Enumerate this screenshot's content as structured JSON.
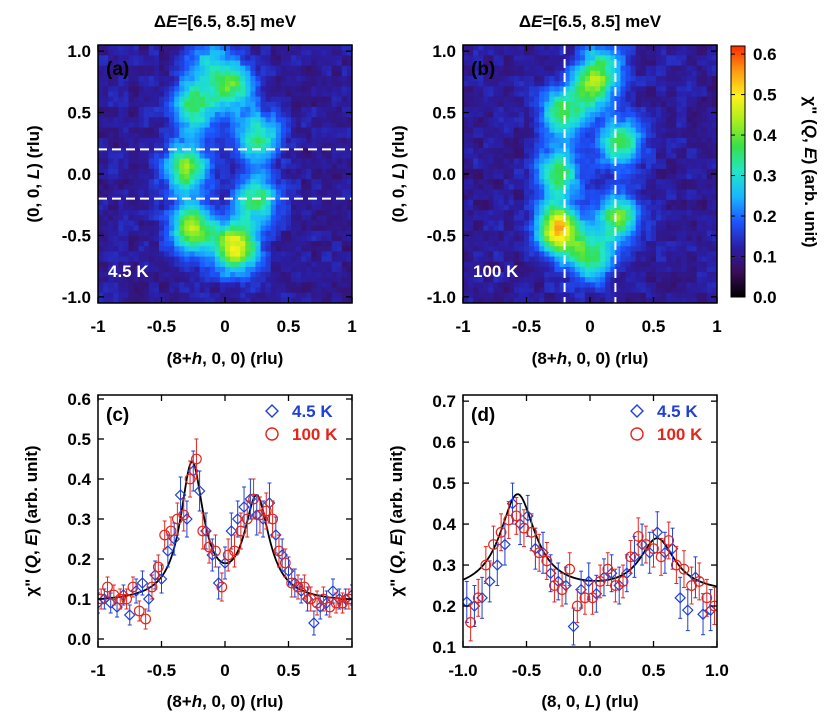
{
  "colors": {
    "blue": "#1f3fd6",
    "red": "#e3261c",
    "fit": "#000000",
    "colormap": [
      "#000000",
      "#3a0d5a",
      "#2a1fa8",
      "#1c55ff",
      "#19b6ff",
      "#20e6c8",
      "#38e04a",
      "#a6ee1e",
      "#fff21a",
      "#ff9a12",
      "#ff2a00"
    ]
  },
  "chart_data": [
    {
      "panel": "(a)",
      "type": "heatmap",
      "title": "ΔE=[6.5, 8.5] meV",
      "title_parts": {
        "delta": "Δ",
        "E": "E",
        "rest": "=[6.5, 8.5] meV"
      },
      "xlabel": "(8+h, 0, 0) (rlu)",
      "xlabel_parts": {
        "pre": "(8+",
        "var": "h",
        "post": ", 0, 0) (rlu)"
      },
      "ylabel": "(0, 0, L) (rlu)",
      "ylabel_parts": {
        "pre": "(0, 0, ",
        "var": "L",
        "post": ") (rlu)"
      },
      "xlim": [
        -1,
        1
      ],
      "ylim": [
        -1.05,
        1.05
      ],
      "xticks": [
        "-1",
        "-0.5",
        "0",
        "0.5",
        "1"
      ],
      "yticks": [
        "-1.0",
        "-0.5",
        "0.0",
        "0.5",
        "1.0"
      ],
      "temperature_label": "4.5 K",
      "cut_lines": {
        "orientation": "horizontal",
        "at": [
          -0.2,
          0.2
        ]
      },
      "intensity_model": {
        "background": 0.11,
        "ring": [
          {
            "h": -0.26,
            "L": -0.45,
            "amp": 0.34
          },
          {
            "h": 0.08,
            "L": -0.6,
            "amp": 0.39
          },
          {
            "h": 0.25,
            "L": -0.2,
            "amp": 0.25
          },
          {
            "h": 0.26,
            "L": 0.3,
            "amp": 0.24
          },
          {
            "h": 0.05,
            "L": 0.72,
            "amp": 0.26
          },
          {
            "h": -0.25,
            "L": 0.55,
            "amp": 0.26
          },
          {
            "h": -0.3,
            "L": 0.05,
            "amp": 0.3
          },
          {
            "h": -0.15,
            "L": 0.9,
            "amp": 0.14
          }
        ]
      }
    },
    {
      "panel": "(b)",
      "type": "heatmap",
      "title": "ΔE=[6.5, 8.5] meV",
      "title_parts": {
        "delta": "Δ",
        "E": "E",
        "rest": "=[6.5, 8.5] meV"
      },
      "xlabel": "(8+h, 0, 0) (rlu)",
      "xlabel_parts": {
        "pre": "(8+",
        "var": "h",
        "post": ", 0, 0) (rlu)"
      },
      "ylabel": "(0, 0, L) (rlu)",
      "ylabel_parts": {
        "pre": "(0, 0, ",
        "var": "L",
        "post": ") (rlu)"
      },
      "xlim": [
        -1,
        1
      ],
      "ylim": [
        -1.05,
        1.05
      ],
      "xticks": [
        "-1",
        "-0.5",
        "0",
        "0.5",
        "1"
      ],
      "yticks": [
        "-1.0",
        "-0.5",
        "0.0",
        "0.5",
        "1.0"
      ],
      "temperature_label": "100 K",
      "cut_lines": {
        "orientation": "vertical",
        "at": [
          -0.2,
          0.2
        ]
      },
      "intensity_model": {
        "background": 0.11,
        "ring": [
          {
            "h": -0.25,
            "L": -0.45,
            "amp": 0.42
          },
          {
            "h": 0.0,
            "L": -0.68,
            "amp": 0.26
          },
          {
            "h": 0.22,
            "L": -0.35,
            "amp": 0.28
          },
          {
            "h": 0.24,
            "L": 0.25,
            "amp": 0.26
          },
          {
            "h": 0.02,
            "L": 0.72,
            "amp": 0.26
          },
          {
            "h": -0.22,
            "L": 0.5,
            "amp": 0.26
          },
          {
            "h": -0.25,
            "L": 0.0,
            "amp": 0.26
          },
          {
            "h": 0.1,
            "L": 0.9,
            "amp": 0.14
          }
        ]
      },
      "colorbar": {
        "label": "χ\" (Q, E) (arb. unit)",
        "label_parts": {
          "chi": "χ\" (",
          "Q": "Q",
          "comma": ", ",
          "E": "E",
          "post": ") (arb. unit)"
        },
        "range": [
          0.0,
          0.62
        ],
        "ticks": [
          "0.0",
          "0.1",
          "0.2",
          "0.3",
          "0.4",
          "0.5",
          "0.6"
        ]
      }
    },
    {
      "panel": "(c)",
      "type": "scatter",
      "xlabel": "(8+h, 0, 0) (rlu)",
      "xlabel_parts": {
        "pre": "(8+",
        "var": "h",
        "post": ", 0, 0) (rlu)"
      },
      "ylabel": "χ\" (Q, E) (arb. unit)",
      "ylabel_parts": {
        "chi": "χ\" (",
        "Q": "Q",
        "comma": ", ",
        "E": "E",
        "post": ") (arb. unit)"
      },
      "xlim": [
        -1,
        1
      ],
      "ylim": [
        -0.02,
        0.61
      ],
      "xticks": [
        "-1",
        "-0.5",
        "0",
        "0.5",
        "1"
      ],
      "yticks": [
        "0.0",
        "0.1",
        "0.2",
        "0.3",
        "0.4",
        "0.5",
        "0.6"
      ],
      "legend": [
        "4.5 K",
        "100 K"
      ],
      "series": [
        {
          "name": "4.5 K",
          "marker": "diamond",
          "color": "blue",
          "x": [
            -1.0,
            -0.95,
            -0.9,
            -0.85,
            -0.8,
            -0.75,
            -0.7,
            -0.65,
            -0.6,
            -0.55,
            -0.5,
            -0.45,
            -0.4,
            -0.35,
            -0.3,
            -0.25,
            -0.2,
            -0.15,
            -0.1,
            -0.05,
            0.0,
            0.05,
            0.1,
            0.15,
            0.2,
            0.25,
            0.3,
            0.35,
            0.4,
            0.45,
            0.5,
            0.55,
            0.6,
            0.65,
            0.7,
            0.75,
            0.8,
            0.85,
            0.9,
            0.95,
            1.0
          ],
          "y": [
            0.09,
            0.1,
            0.09,
            0.08,
            0.11,
            0.06,
            0.12,
            0.14,
            0.1,
            0.16,
            0.15,
            0.22,
            0.25,
            0.36,
            0.3,
            0.42,
            0.37,
            0.27,
            0.21,
            0.14,
            0.19,
            0.27,
            0.3,
            0.33,
            0.35,
            0.31,
            0.3,
            0.34,
            0.26,
            0.21,
            0.17,
            0.14,
            0.12,
            0.1,
            0.04,
            0.08,
            0.09,
            0.12,
            0.1,
            0.1,
            0.11
          ],
          "err": [
            0.025,
            0.025,
            0.025,
            0.025,
            0.025,
            0.025,
            0.03,
            0.03,
            0.03,
            0.035,
            0.035,
            0.04,
            0.04,
            0.045,
            0.045,
            0.05,
            0.05,
            0.045,
            0.04,
            0.04,
            0.04,
            0.045,
            0.045,
            0.05,
            0.05,
            0.05,
            0.045,
            0.05,
            0.045,
            0.04,
            0.035,
            0.035,
            0.03,
            0.03,
            0.03,
            0.03,
            0.03,
            0.03,
            0.025,
            0.025,
            0.025
          ]
        },
        {
          "name": "100 K",
          "marker": "circle",
          "color": "red",
          "x": [
            -0.975,
            -0.925,
            -0.875,
            -0.825,
            -0.775,
            -0.725,
            -0.675,
            -0.625,
            -0.575,
            -0.525,
            -0.475,
            -0.425,
            -0.375,
            -0.325,
            -0.275,
            -0.225,
            -0.175,
            -0.125,
            -0.075,
            -0.025,
            0.025,
            0.075,
            0.125,
            0.175,
            0.225,
            0.275,
            0.325,
            0.375,
            0.425,
            0.475,
            0.525,
            0.575,
            0.625,
            0.675,
            0.725,
            0.775,
            0.825,
            0.875,
            0.925,
            0.975
          ],
          "y": [
            0.1,
            0.13,
            0.11,
            0.1,
            0.1,
            0.13,
            0.07,
            0.05,
            0.13,
            0.18,
            0.26,
            0.27,
            0.3,
            0.31,
            0.4,
            0.45,
            0.27,
            0.23,
            0.22,
            0.13,
            0.21,
            0.22,
            0.27,
            0.3,
            0.35,
            0.31,
            0.32,
            0.3,
            0.22,
            0.19,
            0.14,
            0.13,
            0.13,
            0.1,
            0.09,
            0.1,
            0.08,
            0.09,
            0.09,
            0.1
          ],
          "err": [
            0.025,
            0.025,
            0.025,
            0.025,
            0.025,
            0.025,
            0.025,
            0.025,
            0.03,
            0.03,
            0.035,
            0.035,
            0.04,
            0.04,
            0.045,
            0.05,
            0.045,
            0.04,
            0.04,
            0.035,
            0.04,
            0.04,
            0.045,
            0.045,
            0.05,
            0.045,
            0.045,
            0.045,
            0.04,
            0.035,
            0.035,
            0.03,
            0.03,
            0.03,
            0.03,
            0.03,
            0.025,
            0.025,
            0.025,
            0.025
          ]
        }
      ],
      "fit": {
        "type": "two-lorentzian",
        "background": 0.09,
        "peaks": [
          {
            "center": -0.26,
            "amp": 0.34,
            "hwhm": 0.11
          },
          {
            "center": 0.25,
            "amp": 0.255,
            "hwhm": 0.12
          }
        ]
      }
    },
    {
      "panel": "(d)",
      "type": "scatter",
      "xlabel": "(8, 0, L) (rlu)",
      "xlabel_parts": {
        "pre": "(8, 0, ",
        "var": "L",
        "post": ") (rlu)"
      },
      "ylabel": "χ\" (Q, E) (arb. unit)",
      "ylabel_parts": {
        "chi": "χ\" (",
        "Q": "Q",
        "comma": ", ",
        "E": "E",
        "post": ") (arb. unit)"
      },
      "xlim": [
        -1,
        1
      ],
      "ylim": [
        0.1,
        0.715
      ],
      "xticks": [
        "-1.0",
        "-0.5",
        "0.0",
        "0.5",
        "1.0"
      ],
      "yticks": [
        "0.1",
        "0.2",
        "0.3",
        "0.4",
        "0.5",
        "0.6",
        "0.7"
      ],
      "legend": [
        "4.5 K",
        "100 K"
      ],
      "series": [
        {
          "name": "4.5 K",
          "marker": "diamond",
          "color": "blue",
          "x": [
            -0.97,
            -0.91,
            -0.85,
            -0.79,
            -0.73,
            -0.67,
            -0.61,
            -0.55,
            -0.49,
            -0.43,
            -0.37,
            -0.31,
            -0.25,
            -0.19,
            -0.13,
            -0.07,
            -0.01,
            0.05,
            0.11,
            0.17,
            0.23,
            0.29,
            0.35,
            0.41,
            0.47,
            0.53,
            0.59,
            0.65,
            0.71,
            0.77,
            0.83,
            0.89,
            0.95
          ],
          "y": [
            0.21,
            0.2,
            0.22,
            0.26,
            0.3,
            0.35,
            0.45,
            0.4,
            0.42,
            0.34,
            0.33,
            0.28,
            0.26,
            0.25,
            0.15,
            0.24,
            0.26,
            0.23,
            0.27,
            0.28,
            0.25,
            0.28,
            0.32,
            0.35,
            0.33,
            0.38,
            0.33,
            0.34,
            0.22,
            0.19,
            0.27,
            0.18,
            0.19
          ],
          "err": [
            0.05,
            0.05,
            0.05,
            0.05,
            0.05,
            0.05,
            0.05,
            0.05,
            0.05,
            0.05,
            0.05,
            0.045,
            0.045,
            0.045,
            0.045,
            0.045,
            0.045,
            0.045,
            0.045,
            0.045,
            0.045,
            0.045,
            0.05,
            0.05,
            0.05,
            0.05,
            0.05,
            0.05,
            0.05,
            0.05,
            0.05,
            0.05,
            0.05
          ]
        },
        {
          "name": "100 K",
          "marker": "circle",
          "color": "red",
          "x": [
            -0.94,
            -0.88,
            -0.82,
            -0.76,
            -0.7,
            -0.64,
            -0.58,
            -0.52,
            -0.46,
            -0.4,
            -0.34,
            -0.28,
            -0.22,
            -0.16,
            -0.1,
            -0.04,
            0.02,
            0.08,
            0.14,
            0.2,
            0.26,
            0.32,
            0.38,
            0.44,
            0.5,
            0.56,
            0.62,
            0.68,
            0.74,
            0.8,
            0.86,
            0.92,
            0.98
          ],
          "y": [
            0.16,
            0.22,
            0.3,
            0.35,
            0.38,
            0.41,
            0.42,
            0.39,
            0.38,
            0.33,
            0.31,
            0.25,
            0.24,
            0.29,
            0.2,
            0.22,
            0.22,
            0.26,
            0.29,
            0.25,
            0.26,
            0.32,
            0.37,
            0.35,
            0.34,
            0.32,
            0.36,
            0.3,
            0.29,
            0.25,
            0.26,
            0.22,
            0.2
          ],
          "err": [
            0.045,
            0.045,
            0.045,
            0.045,
            0.045,
            0.045,
            0.045,
            0.045,
            0.045,
            0.045,
            0.045,
            0.04,
            0.04,
            0.04,
            0.04,
            0.04,
            0.04,
            0.04,
            0.04,
            0.04,
            0.04,
            0.04,
            0.045,
            0.045,
            0.045,
            0.045,
            0.045,
            0.045,
            0.045,
            0.045,
            0.045,
            0.045,
            0.045
          ]
        }
      ],
      "fit": {
        "type": "two-lorentzian",
        "background": 0.23,
        "peaks": [
          {
            "center": -0.57,
            "amp": 0.24,
            "hwhm": 0.17
          },
          {
            "center": 0.53,
            "amp": 0.13,
            "hwhm": 0.17
          }
        ]
      }
    }
  ]
}
